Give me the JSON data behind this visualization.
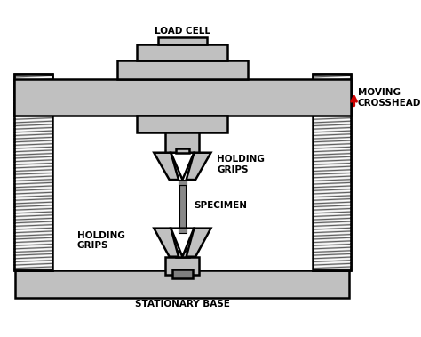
{
  "bg_color": "#ffffff",
  "gray": "#c0c0c0",
  "gray2": "#b0b0b0",
  "thread_gray": "#c8c8c8",
  "black": "#000000",
  "red": "#cc0000",
  "labels": {
    "load_cell": "LOAD CELL",
    "holding_grips_top": "HOLDING\nGRIPS",
    "specimen": "SPECIMEN",
    "holding_grips_bottom": "HOLDING\nGRIPS",
    "moving_crosshead": "MOVING\nCROSSHEAD",
    "stationary_base": "STATIONARY BASE"
  },
  "font_size": 7.5,
  "lw": 1.8
}
